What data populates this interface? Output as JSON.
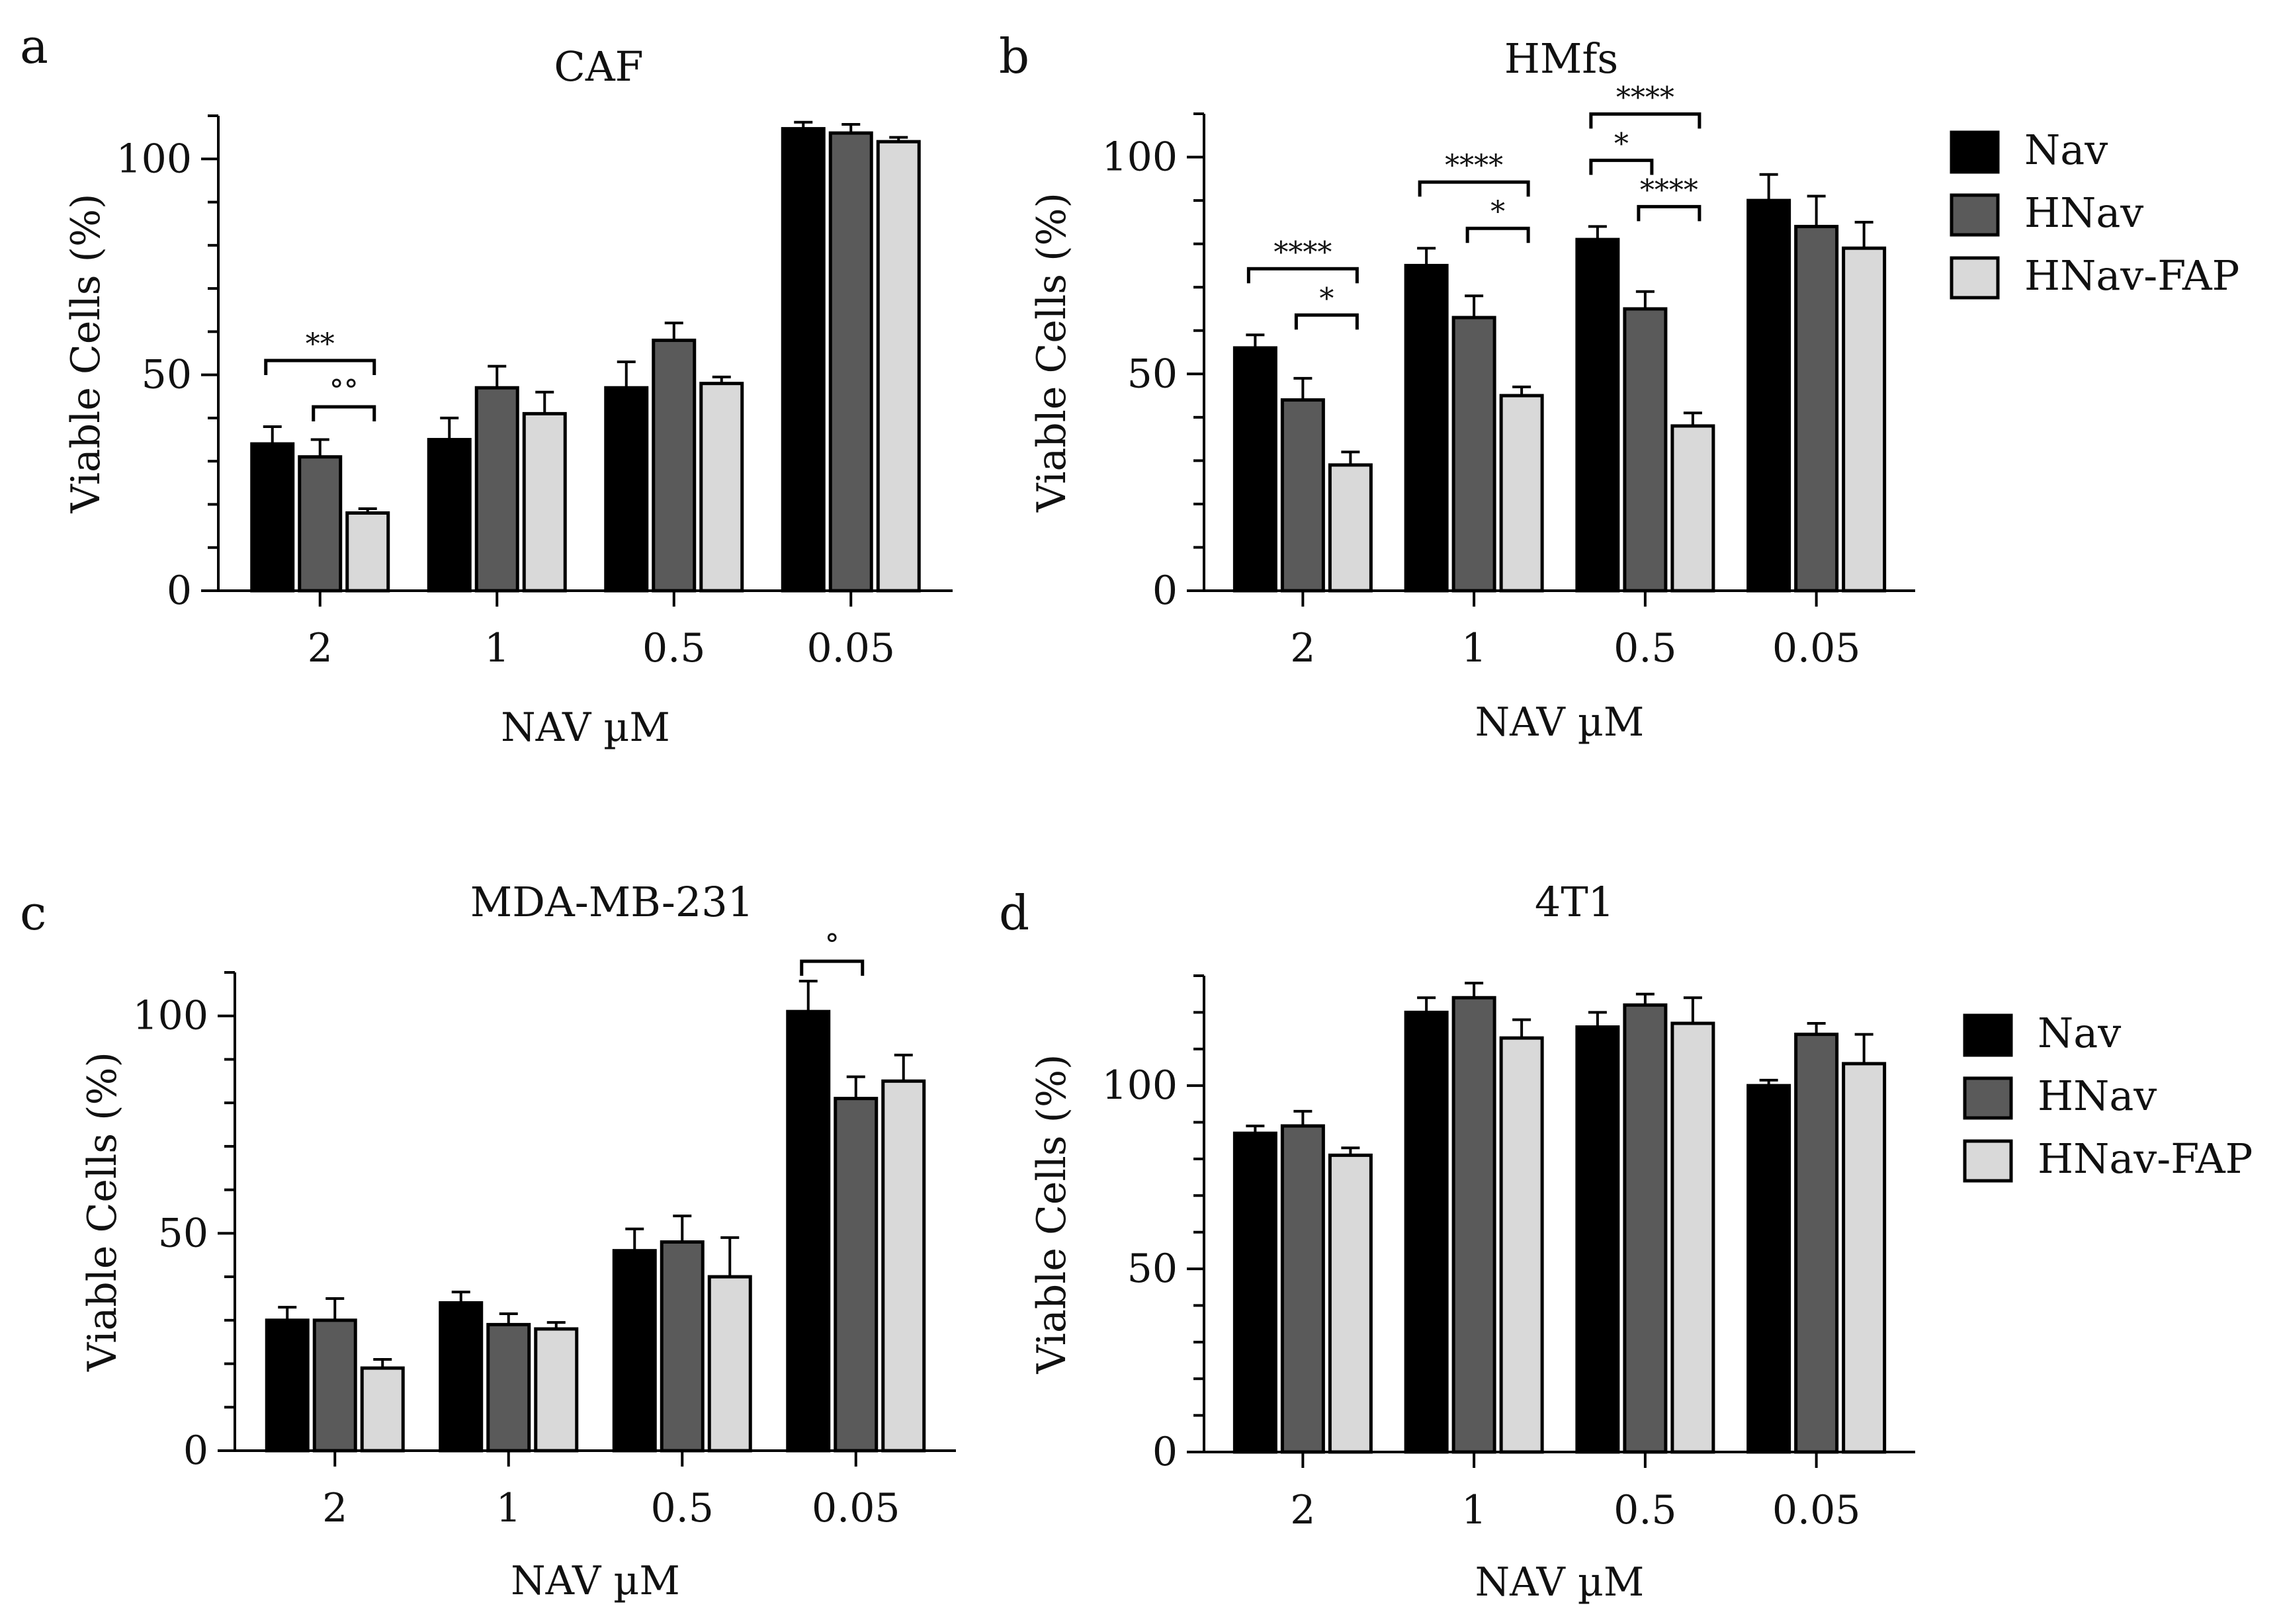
{
  "figure": {
    "legend": {
      "entries": [
        {
          "name": "Nav",
          "color": "#000000"
        },
        {
          "name": "HNav",
          "color": "#5a5a5a"
        },
        {
          "name": "HNav-FAP",
          "color": "#d9d9d9"
        }
      ]
    }
  },
  "chart_data": [
    {
      "panel": "a",
      "type": "bar",
      "title": "CAF",
      "xlabel": "NAV µM",
      "ylabel": "Viable Cells (%)",
      "categories": [
        "2",
        "1",
        "0.5",
        "0.05"
      ],
      "ylim": [
        0,
        110
      ],
      "yticks": [
        0,
        50,
        100
      ],
      "series": [
        {
          "name": "Nav",
          "values": [
            34,
            35,
            47,
            107
          ],
          "errors": [
            4,
            5,
            6,
            1.5
          ]
        },
        {
          "name": "HNav",
          "values": [
            31,
            47,
            58,
            106
          ],
          "errors": [
            4,
            5,
            4,
            2
          ]
        },
        {
          "name": "HNav-FAP",
          "values": [
            18,
            41,
            48,
            104
          ],
          "errors": [
            1,
            5,
            1.5,
            1
          ]
        }
      ],
      "significance": [
        {
          "group": 0,
          "from": 0,
          "to": 2,
          "label": "**",
          "level": 2
        },
        {
          "group": 0,
          "from": 1,
          "to": 2,
          "label": "°°",
          "level": 1
        }
      ],
      "legend": false
    },
    {
      "panel": "b",
      "type": "bar",
      "title": "HMfs",
      "xlabel": "NAV µM",
      "ylabel": "Viable Cells (%)",
      "categories": [
        "2",
        "1",
        "0.5",
        "0.05"
      ],
      "ylim": [
        0,
        110
      ],
      "yticks": [
        0,
        50,
        100
      ],
      "series": [
        {
          "name": "Nav",
          "values": [
            56,
            75,
            81,
            90
          ],
          "errors": [
            3,
            4,
            3,
            6
          ]
        },
        {
          "name": "HNav",
          "values": [
            44,
            63,
            65,
            84
          ],
          "errors": [
            5,
            5,
            4,
            7
          ]
        },
        {
          "name": "HNav-FAP",
          "values": [
            29,
            45,
            38,
            79
          ],
          "errors": [
            3,
            2,
            3,
            6
          ]
        }
      ],
      "significance": [
        {
          "group": 0,
          "from": 0,
          "to": 2,
          "label": "****",
          "level": 2
        },
        {
          "group": 0,
          "from": 1,
          "to": 2,
          "label": "*",
          "level": 1
        },
        {
          "group": 1,
          "from": 0,
          "to": 2,
          "label": "****",
          "level": 2
        },
        {
          "group": 1,
          "from": 1,
          "to": 2,
          "label": "*",
          "level": 1
        },
        {
          "group": 2,
          "from": 0,
          "to": 2,
          "label": "****",
          "level": 3
        },
        {
          "group": 2,
          "from": 0,
          "to": 1,
          "label": "*",
          "level": 2
        },
        {
          "group": 2,
          "from": 1,
          "to": 2,
          "label": "****",
          "level": 1
        }
      ],
      "legend": true
    },
    {
      "panel": "c",
      "type": "bar",
      "title": "MDA-MB-231",
      "xlabel": "NAV µM",
      "ylabel": "Viable Cells (%)",
      "categories": [
        "2",
        "1",
        "0.5",
        "0.05"
      ],
      "ylim": [
        0,
        110
      ],
      "yticks": [
        0,
        50,
        100
      ],
      "series": [
        {
          "name": "Nav",
          "values": [
            30,
            34,
            46,
            101
          ],
          "errors": [
            3,
            2.5,
            5,
            7
          ]
        },
        {
          "name": "HNav",
          "values": [
            30,
            29,
            48,
            81
          ],
          "errors": [
            5,
            2.5,
            6,
            5
          ]
        },
        {
          "name": "HNav-FAP",
          "values": [
            19,
            28,
            40,
            85
          ],
          "errors": [
            2,
            1.5,
            9,
            6
          ]
        }
      ],
      "significance": [
        {
          "group": 3,
          "from": 0,
          "to": 1,
          "label": "°",
          "level": 1
        }
      ],
      "legend": false
    },
    {
      "panel": "d",
      "type": "bar",
      "title": "4T1",
      "xlabel": "NAV µM",
      "ylabel": "Viable Cells (%)",
      "categories": [
        "2",
        "1",
        "0.5",
        "0.05"
      ],
      "ylim": [
        0,
        130
      ],
      "yticks": [
        0,
        50,
        100
      ],
      "series": [
        {
          "name": "Nav",
          "values": [
            87,
            120,
            116,
            100
          ],
          "errors": [
            2,
            4,
            4,
            1.5
          ]
        },
        {
          "name": "HNav",
          "values": [
            89,
            124,
            122,
            114
          ],
          "errors": [
            4,
            4,
            3,
            3
          ]
        },
        {
          "name": "HNav-FAP",
          "values": [
            81,
            113,
            117,
            106
          ],
          "errors": [
            2,
            5,
            7,
            8
          ]
        }
      ],
      "significance": [],
      "legend": true
    }
  ]
}
